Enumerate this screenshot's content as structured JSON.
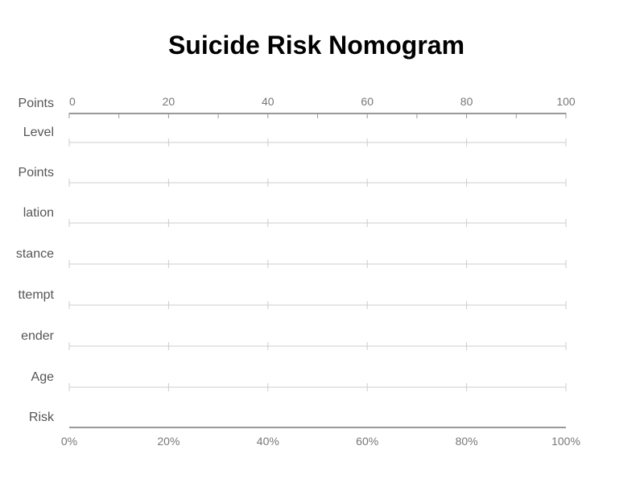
{
  "chart_data": {
    "type": "nomogram",
    "title": "Suicide Risk Nomogram",
    "rows": [
      {
        "label": "Points",
        "kind": "points"
      },
      {
        "label": "Level",
        "kind": "variable"
      },
      {
        "label": "Points",
        "kind": "variable"
      },
      {
        "label": "lation",
        "kind": "variable"
      },
      {
        "label": "stance",
        "kind": "variable"
      },
      {
        "label": "ttempt",
        "kind": "variable"
      },
      {
        "label": "ender",
        "kind": "variable"
      },
      {
        "label": "Age",
        "kind": "variable"
      },
      {
        "label": "Risk",
        "kind": "risk"
      }
    ],
    "points_axis": {
      "range": [
        0,
        100
      ],
      "major_ticks": [
        0,
        20,
        40,
        60,
        80,
        100
      ],
      "tick_labels": [
        "0",
        "20",
        "40",
        "60",
        "80",
        "100"
      ],
      "minor_tick_step": 10
    },
    "risk_axis": {
      "range": [
        0,
        1
      ],
      "major_ticks": [
        0,
        0.2,
        0.4,
        0.6,
        0.8,
        1.0
      ],
      "tick_labels": [
        "0%",
        "20%",
        "40%",
        "60%",
        "80%",
        "100%"
      ]
    },
    "colors": {
      "title": "#000000",
      "row_label": "#555555",
      "tick_label": "#777777",
      "main_axis": "#999999",
      "row_line": "#cccccc"
    }
  }
}
